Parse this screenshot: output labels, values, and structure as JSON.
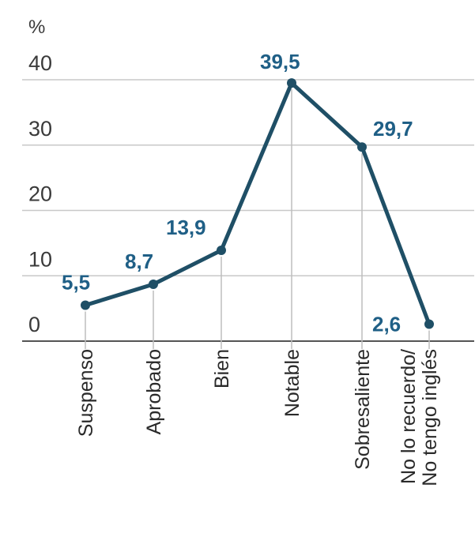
{
  "chart_data": {
    "type": "line",
    "title": "",
    "ylabel": "%",
    "xlabel": "",
    "ylim": [
      0,
      40
    ],
    "yticks": [
      "0",
      "10",
      "20",
      "30",
      "40"
    ],
    "grid": true,
    "categories": [
      [
        "Suspenso"
      ],
      [
        "Aprobado"
      ],
      [
        "Bien"
      ],
      [
        "Notable"
      ],
      [
        "Sobresaliente"
      ],
      [
        "No lo recuerdo/",
        "No tengo inglés"
      ]
    ],
    "values": [
      5.5,
      8.7,
      13.9,
      39.5,
      29.7,
      2.6
    ],
    "value_labels": [
      "5,5",
      "8,7",
      "13,9",
      "39,5",
      "29,7",
      "2,6"
    ],
    "line_color": "#1f4f66",
    "label_color": "#1f5f86",
    "grid_color": "#c8c8c8"
  }
}
